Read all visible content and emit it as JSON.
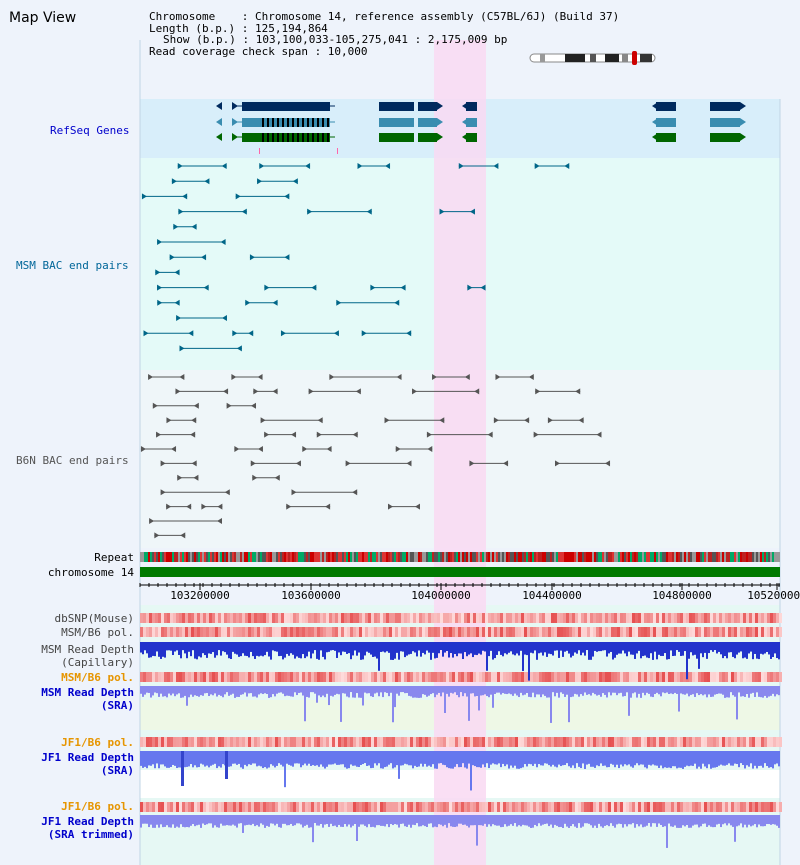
{
  "view": {
    "title": "Map View",
    "info": {
      "chromosome": "Chromosome    : Chromosome 14, reference assembly (C57BL/6J) (Build 37)",
      "length": "Length (b.p.) : 125,194,864",
      "show": "Show (b.p.) : 103,100,033-105,275,041 : 2,175,009 bp",
      "span": "Read coverage check span : 10,000"
    }
  },
  "tracks": {
    "refseq": {
      "label": "RefSeq Genes",
      "color": "#0000cc"
    },
    "msm_bac": {
      "label": "MSM BAC end pairs",
      "color": "#006699"
    },
    "b6n_bac": {
      "label": "B6N BAC end pairs",
      "color": "#555555"
    },
    "repeat": {
      "label": "Repeat"
    },
    "chromosome": {
      "label": "chromosome 14"
    },
    "dbsnp": {
      "label": "dbSNP(Mouse)",
      "color": "#444444"
    },
    "msm_b6_pol_1": {
      "label": "MSM/B6 pol.",
      "color": "#444444"
    },
    "msm_depth_cap": {
      "line1": "MSM Read Depth",
      "line2": "(Capillary)",
      "color": "#444444"
    },
    "msm_b6_pol_2": {
      "label": "MSM/B6 pol.",
      "color": "#e69500"
    },
    "msm_depth_sra": {
      "line1": "MSM Read Depth",
      "line2": "(SRA)",
      "color": "#0000cc"
    },
    "jf1_b6_pol_1": {
      "label": "JF1/B6 pol.",
      "color": "#e69500"
    },
    "jf1_depth_sra": {
      "line1": "JF1 Read Depth",
      "line2": "(SRA)",
      "color": "#0000cc"
    },
    "jf1_b6_pol_2": {
      "label": "JF1/B6 pol.",
      "color": "#e69500"
    },
    "jf1_depth_trim": {
      "line1": "JF1 Read Depth",
      "line2": "(SRA trimmed)",
      "color": "#0000cc"
    }
  },
  "axis": {
    "ticks": [
      "103200000",
      "103600000",
      "104000000",
      "104400000",
      "104800000",
      "105200000"
    ]
  },
  "colors": {
    "highlight": "#f9d9f2",
    "refseq_bg": "#d8eefa",
    "data_bg": "#e4faf8",
    "gene_navy": "#002a5e",
    "gene_teal": "#3a8db0",
    "gene_green": "#006600",
    "msm_line": "#006688",
    "b6n_line": "#555555",
    "chrom_green": "#007a00"
  }
}
